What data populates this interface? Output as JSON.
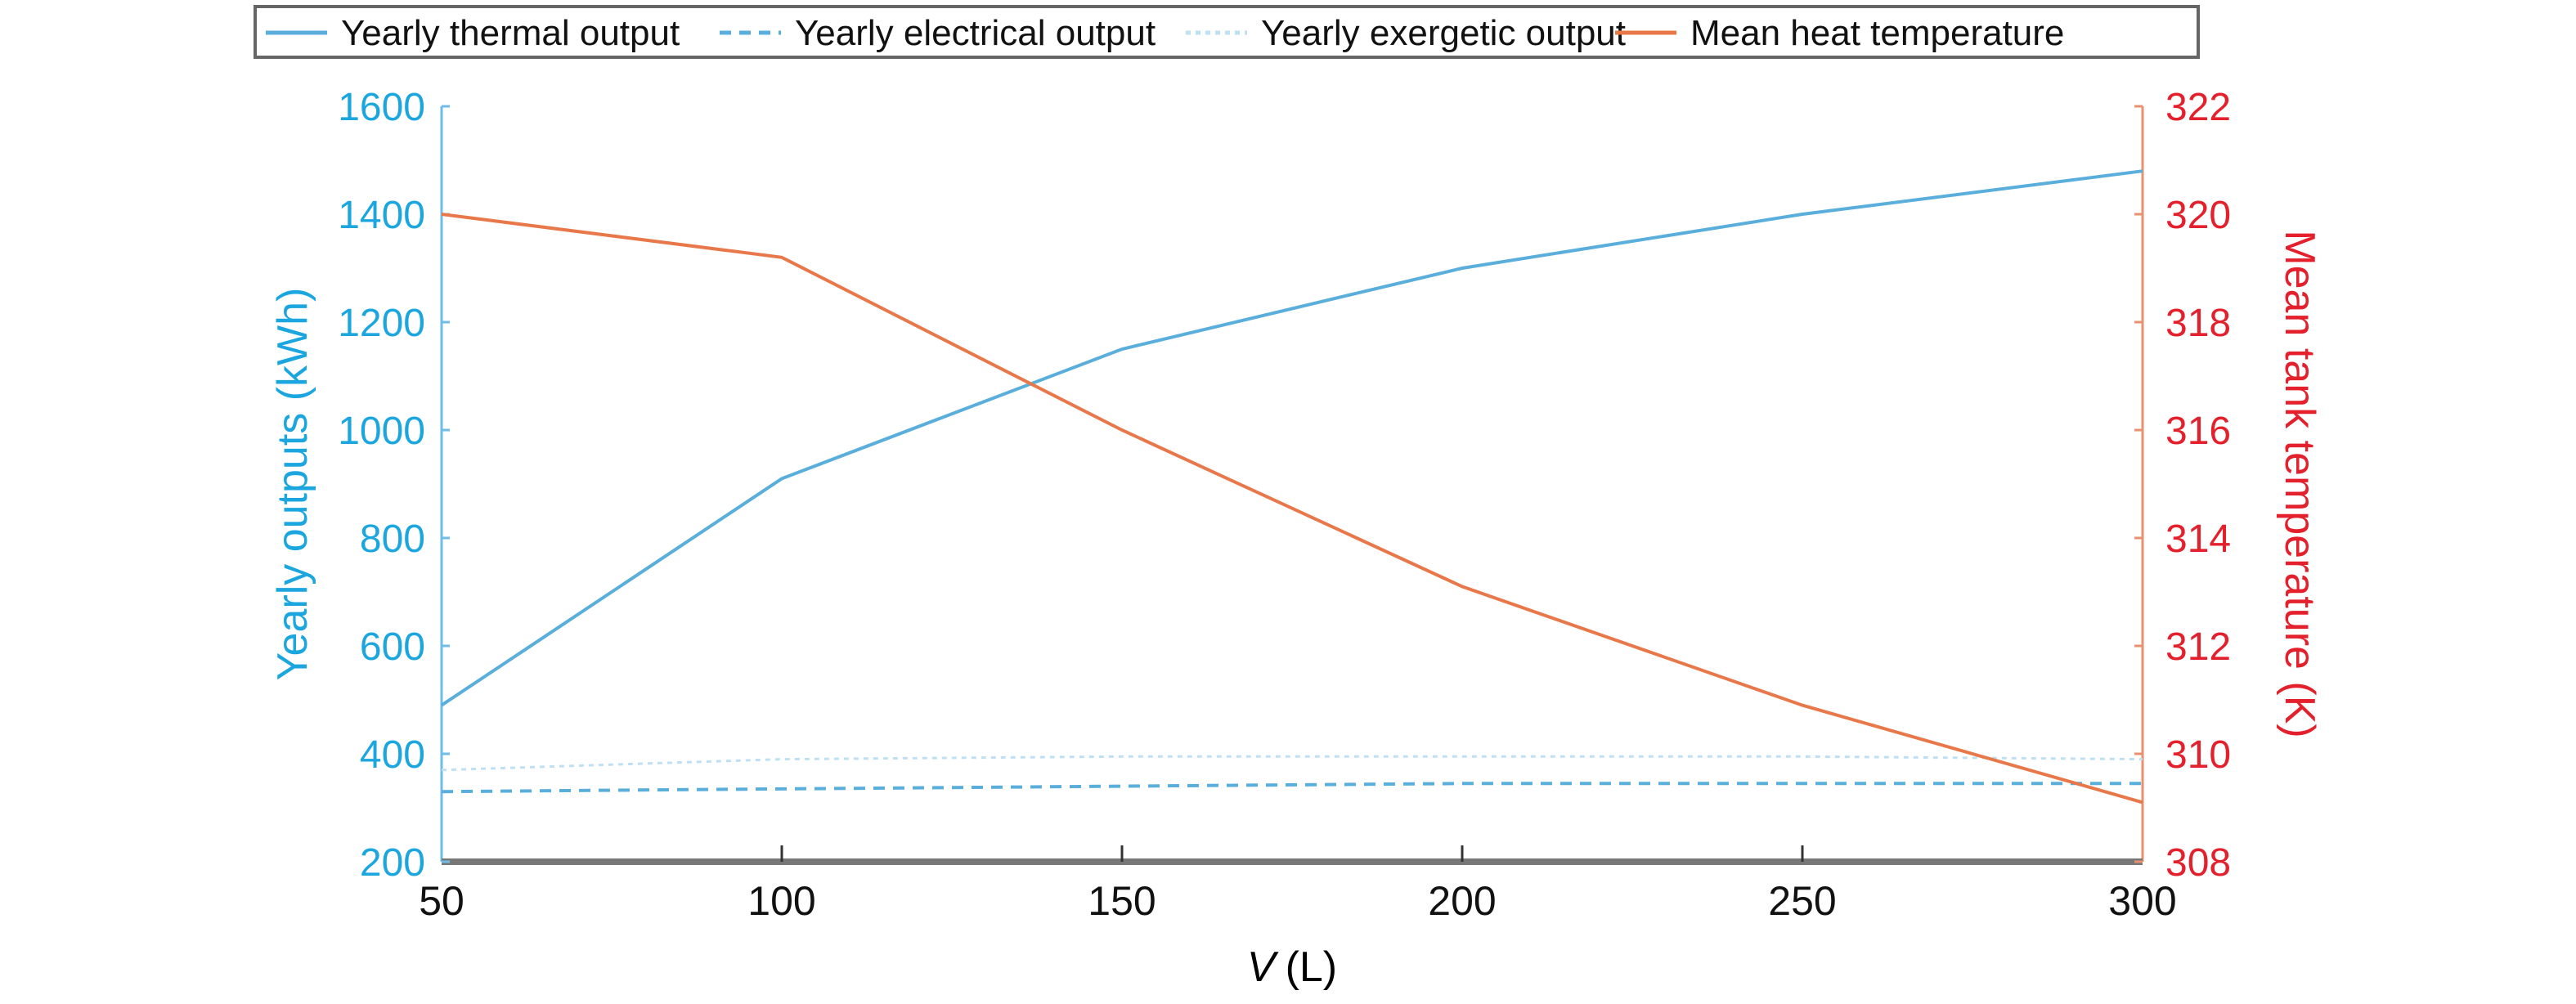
{
  "chart_data": {
    "type": "line",
    "title": "",
    "xlabel_var": "V",
    "xlabel_unit": "(L)",
    "ylabel": "Yearly outputs (kWh)",
    "y2label": "Mean tank temperature (K)",
    "x": [
      50,
      100,
      150,
      200,
      250,
      300
    ],
    "xlim": [
      50,
      300
    ],
    "ylim": [
      200,
      1600
    ],
    "y2lim": [
      308,
      322
    ],
    "xticks": [
      50,
      100,
      150,
      200,
      250,
      300
    ],
    "yticks": [
      200,
      400,
      600,
      800,
      1000,
      1200,
      1400,
      1600
    ],
    "y2ticks": [
      308,
      310,
      312,
      314,
      316,
      318,
      320,
      322
    ],
    "grid": false,
    "legend_position": "top",
    "series": [
      {
        "name": "Yearly thermal output",
        "axis": "left",
        "style": "solid",
        "color": "#5aaedc",
        "values": [
          490,
          910,
          1150,
          1300,
          1400,
          1480
        ]
      },
      {
        "name": "Yearly electrical output",
        "axis": "left",
        "style": "dashed",
        "color": "#5aaedc",
        "values": [
          330,
          335,
          340,
          345,
          345,
          345
        ]
      },
      {
        "name": "Yearly exergetic output",
        "axis": "left",
        "style": "dotted",
        "color": "#bfe0f2",
        "values": [
          370,
          390,
          395,
          395,
          395,
          390
        ]
      },
      {
        "name": "Mean heat temperature",
        "axis": "right",
        "style": "solid",
        "color": "#e8784a",
        "values": [
          320.0,
          319.2,
          316.0,
          313.1,
          310.9,
          309.1
        ]
      }
    ],
    "colors": {
      "left_axis": "#1ba6df",
      "right_axis": "#e3202b",
      "bottom_axis": "#777777"
    }
  }
}
